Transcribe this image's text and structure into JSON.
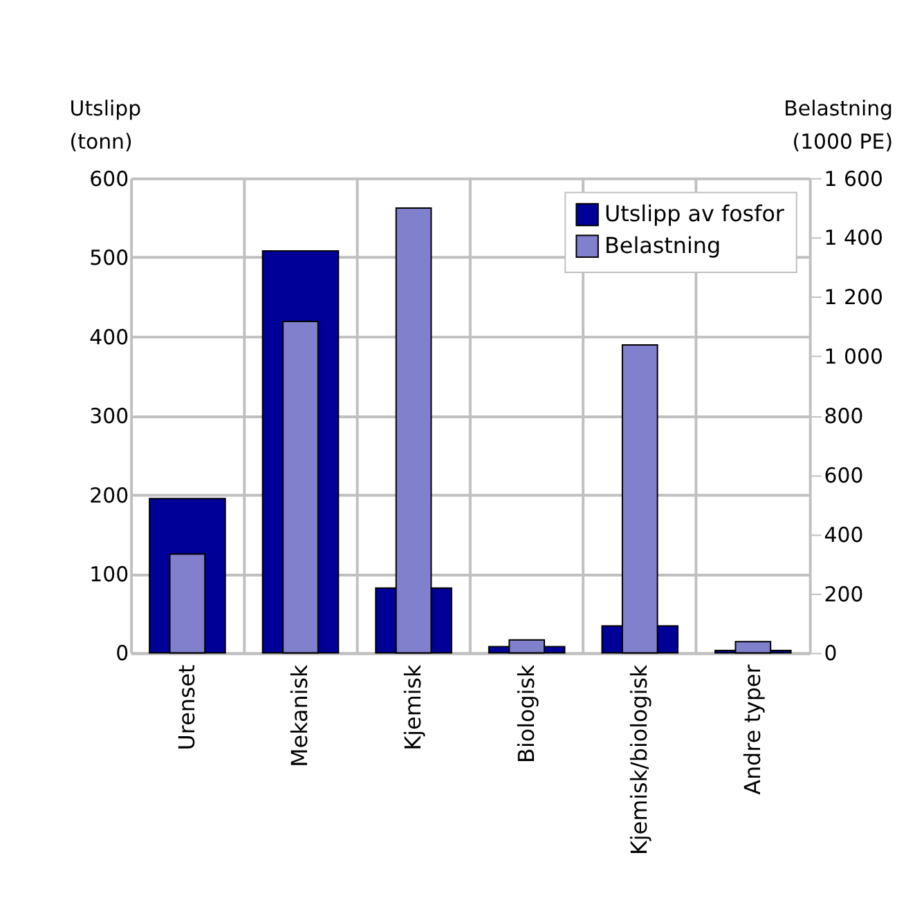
{
  "chart_data": {
    "type": "bar",
    "categories": [
      "Urenset",
      "Mekanisk",
      "Kjemisk",
      "Biologisk",
      "Kjemisk/biologisk",
      "Andre typer"
    ],
    "series": [
      {
        "name": "Utslipp av fosfor",
        "color": "#000099",
        "values": [
          195,
          508,
          82,
          8,
          34,
          3
        ]
      },
      {
        "name": "Belastning",
        "color": "#8080cc",
        "axis": "y2",
        "values": [
          333,
          1117,
          1499,
          44,
          1038,
          38
        ]
      }
    ],
    "ylabel": "Utslipp\n(tonn)",
    "y2label": "Belastning\n(1000 PE)",
    "ylim": [
      0,
      600
    ],
    "yticks": [
      0,
      100,
      200,
      300,
      400,
      500,
      600
    ],
    "y2lim": [
      0,
      1600
    ],
    "y2ticks": [
      0,
      200,
      400,
      600,
      800,
      {
        "value": 1000,
        "label": "1 000"
      },
      {
        "value": 1200,
        "label": "1 200"
      },
      {
        "value": 1400,
        "label": "1 400"
      },
      {
        "value": 1600,
        "label": "1 600"
      }
    ],
    "grid": true,
    "legend": "top right"
  }
}
